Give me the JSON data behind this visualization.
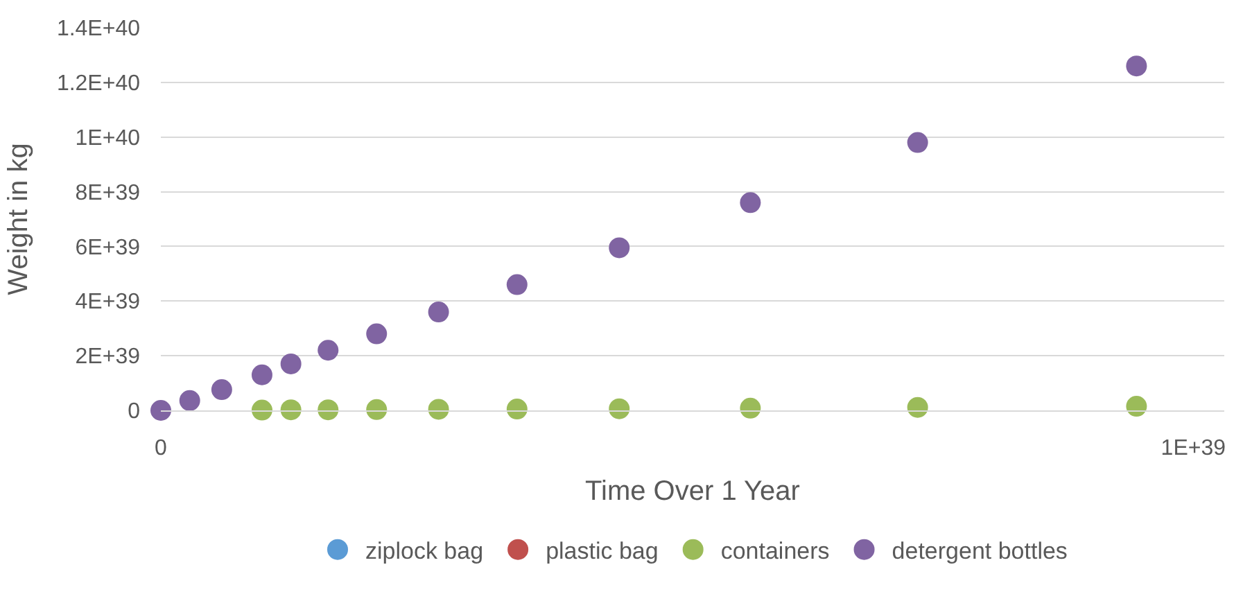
{
  "chart_data": {
    "type": "scatter",
    "xlabel": "Time Over 1 Year",
    "ylabel": "Weight in kg",
    "series": [
      {
        "name": "ziplock bag",
        "color": "#5b9bd5"
      },
      {
        "name": "plastic bag",
        "color": "#c0504d"
      },
      {
        "name": "containers",
        "color": "#9bbb59",
        "x": [
          9.8e+37,
          1.26e+38,
          1.62e+38,
          2.09e+38,
          2.69e+38,
          3.45e+38,
          4.44e+38,
          5.71e+38,
          7.33e+38,
          9.45e+38
        ],
        "values": [
          1e+37,
          2e+37,
          2e+37,
          3e+37,
          4e+37,
          5e+37,
          6e+37,
          8e+37,
          1.1e+38,
          1.5e+38
        ]
      },
      {
        "name": "detergent bottles",
        "color": "#8064a2",
        "x": [
          0,
          2.8e+37,
          5.9e+37,
          9.8e+37,
          1.26e+38,
          1.62e+38,
          2.09e+38,
          2.69e+38,
          3.45e+38,
          4.44e+38,
          5.71e+38,
          7.33e+38,
          9.45e+38
        ],
        "values": [
          0,
          3.6e+38,
          7.6e+38,
          1.3e+39,
          1.7e+39,
          2.2e+39,
          2.8e+39,
          3.6e+39,
          4.6e+39,
          5.95e+39,
          7.6e+39,
          9.8e+39,
          1.26e+40
        ]
      }
    ],
    "xlim": [
      0,
      1.03e+39
    ],
    "xticks": [
      {
        "value": 0,
        "label": "0"
      },
      {
        "value": 1e+39,
        "label": "1E+39"
      }
    ],
    "ylim": [
      0,
      1.4e+40
    ],
    "yticks": [
      {
        "value": 0,
        "label": "0"
      },
      {
        "value": 2e+39,
        "label": "2E+39"
      },
      {
        "value": 4e+39,
        "label": "4E+39"
      },
      {
        "value": 6e+39,
        "label": "6E+39"
      },
      {
        "value": 8e+39,
        "label": "8E+39"
      },
      {
        "value": 1e+40,
        "label": "1E+40"
      },
      {
        "value": 1.2e+40,
        "label": "1.2E+40"
      },
      {
        "value": 1.4e+40,
        "label": "1.4E+40"
      }
    ],
    "grid": "y",
    "legend": "bottom",
    "marker": "circle"
  }
}
